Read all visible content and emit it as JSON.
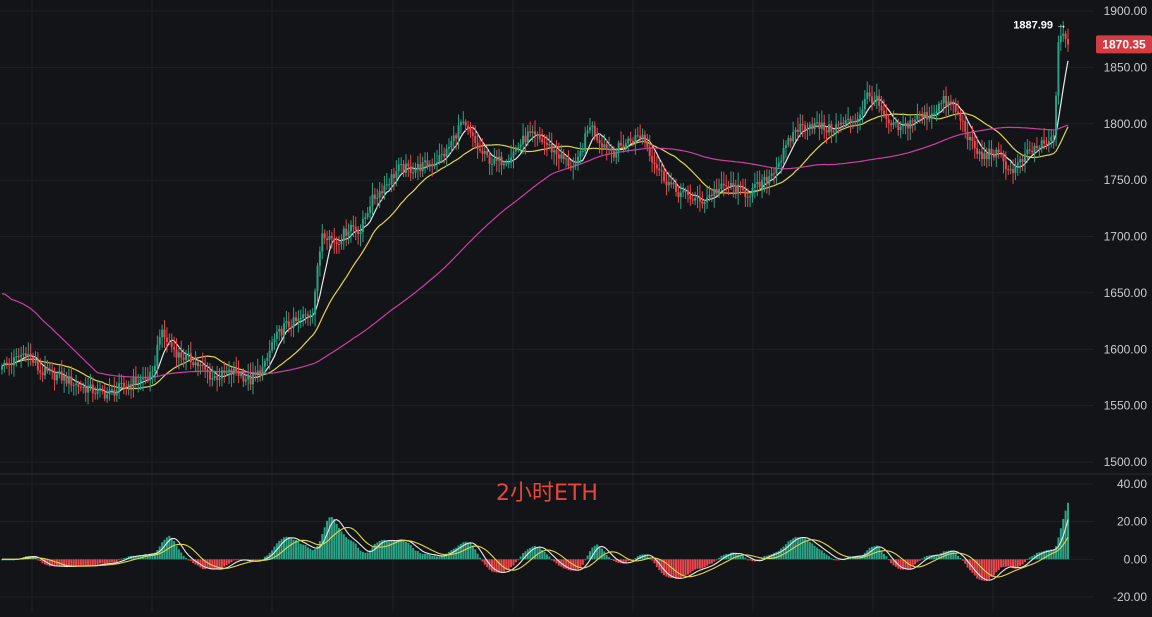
{
  "chart_data": [
    {
      "type": "candlestick",
      "pane": "price",
      "annotation": "2小时ETH",
      "ylim": [
        1490,
        1912
      ],
      "y_ticks": [
        1500,
        1550,
        1600,
        1650,
        1700,
        1750,
        1800,
        1850,
        1900
      ],
      "y_tick_labels": [
        "1500.00",
        "1550.00",
        "1600.00",
        "1650.00",
        "1700.00",
        "1750.00",
        "1800.00",
        "1850.00",
        "1900.00"
      ],
      "grid": true,
      "peak": {
        "label": "1887.99",
        "value": 1887.99,
        "arrow": "→"
      },
      "last_price": {
        "label": "1870.35",
        "value": 1870.35
      },
      "anchors": [
        [
          0,
          1585
        ],
        [
          4,
          1588
        ],
        [
          10,
          1598
        ],
        [
          16,
          1580
        ],
        [
          24,
          1576
        ],
        [
          34,
          1566
        ],
        [
          44,
          1560
        ],
        [
          54,
          1570
        ],
        [
          63,
          1576
        ],
        [
          66,
          1615
        ],
        [
          70,
          1605
        ],
        [
          74,
          1595
        ],
        [
          80,
          1590
        ],
        [
          88,
          1575
        ],
        [
          98,
          1580
        ],
        [
          104,
          1572
        ],
        [
          110,
          1585
        ],
        [
          113,
          1605
        ],
        [
          118,
          1620
        ],
        [
          124,
          1625
        ],
        [
          130,
          1635
        ],
        [
          134,
          1705
        ],
        [
          140,
          1695
        ],
        [
          146,
          1710
        ],
        [
          150,
          1705
        ],
        [
          154,
          1730
        ],
        [
          160,
          1745
        ],
        [
          166,
          1760
        ],
        [
          172,
          1760
        ],
        [
          180,
          1765
        ],
        [
          186,
          1775
        ],
        [
          192,
          1800
        ],
        [
          196,
          1790
        ],
        [
          200,
          1775
        ],
        [
          206,
          1765
        ],
        [
          212,
          1770
        ],
        [
          220,
          1790
        ],
        [
          226,
          1785
        ],
        [
          234,
          1770
        ],
        [
          240,
          1760
        ],
        [
          246,
          1800
        ],
        [
          250,
          1785
        ],
        [
          256,
          1775
        ],
        [
          262,
          1785
        ],
        [
          268,
          1790
        ],
        [
          272,
          1770
        ],
        [
          276,
          1755
        ],
        [
          282,
          1740
        ],
        [
          288,
          1735
        ],
        [
          292,
          1730
        ],
        [
          298,
          1740
        ],
        [
          304,
          1745
        ],
        [
          312,
          1738
        ],
        [
          320,
          1750
        ],
        [
          326,
          1770
        ],
        [
          332,
          1795
        ],
        [
          338,
          1800
        ],
        [
          346,
          1795
        ],
        [
          352,
          1800
        ],
        [
          358,
          1805
        ],
        [
          362,
          1825
        ],
        [
          366,
          1820
        ],
        [
          370,
          1800
        ],
        [
          376,
          1795
        ],
        [
          382,
          1805
        ],
        [
          388,
          1808
        ],
        [
          394,
          1820
        ],
        [
          398,
          1815
        ],
        [
          402,
          1800
        ],
        [
          406,
          1780
        ],
        [
          410,
          1770
        ],
        [
          414,
          1775
        ],
        [
          418,
          1770
        ],
        [
          422,
          1758
        ],
        [
          426,
          1765
        ],
        [
          430,
          1775
        ],
        [
          434,
          1780
        ],
        [
          438,
          1782
        ],
        [
          440,
          1790
        ],
        [
          442,
          1868
        ],
        [
          444,
          1880
        ],
        [
          446,
          1870.35
        ]
      ],
      "series": [
        {
          "name": "MA",
          "color": "#e8e8e8",
          "period": 7
        },
        {
          "name": "MA",
          "color": "#e2d54b",
          "period": 25
        },
        {
          "name": "MA",
          "color": "#cc3fa4",
          "period": 99
        }
      ]
    },
    {
      "type": "histogram",
      "pane": "indicator",
      "ylim": [
        -25,
        43
      ],
      "y_ticks": [
        40,
        20,
        0,
        -20
      ],
      "y_tick_labels": [
        "40.00",
        "20.00",
        "0.00",
        "-20.00"
      ]
    }
  ],
  "colors": {
    "background": "#131417",
    "grid": "#1f2127",
    "up": "#2aa285",
    "down": "#e8474d",
    "price_tag": "#d43c44",
    "axis_text": "#c8cbd2",
    "annotation": "#e8453c"
  }
}
